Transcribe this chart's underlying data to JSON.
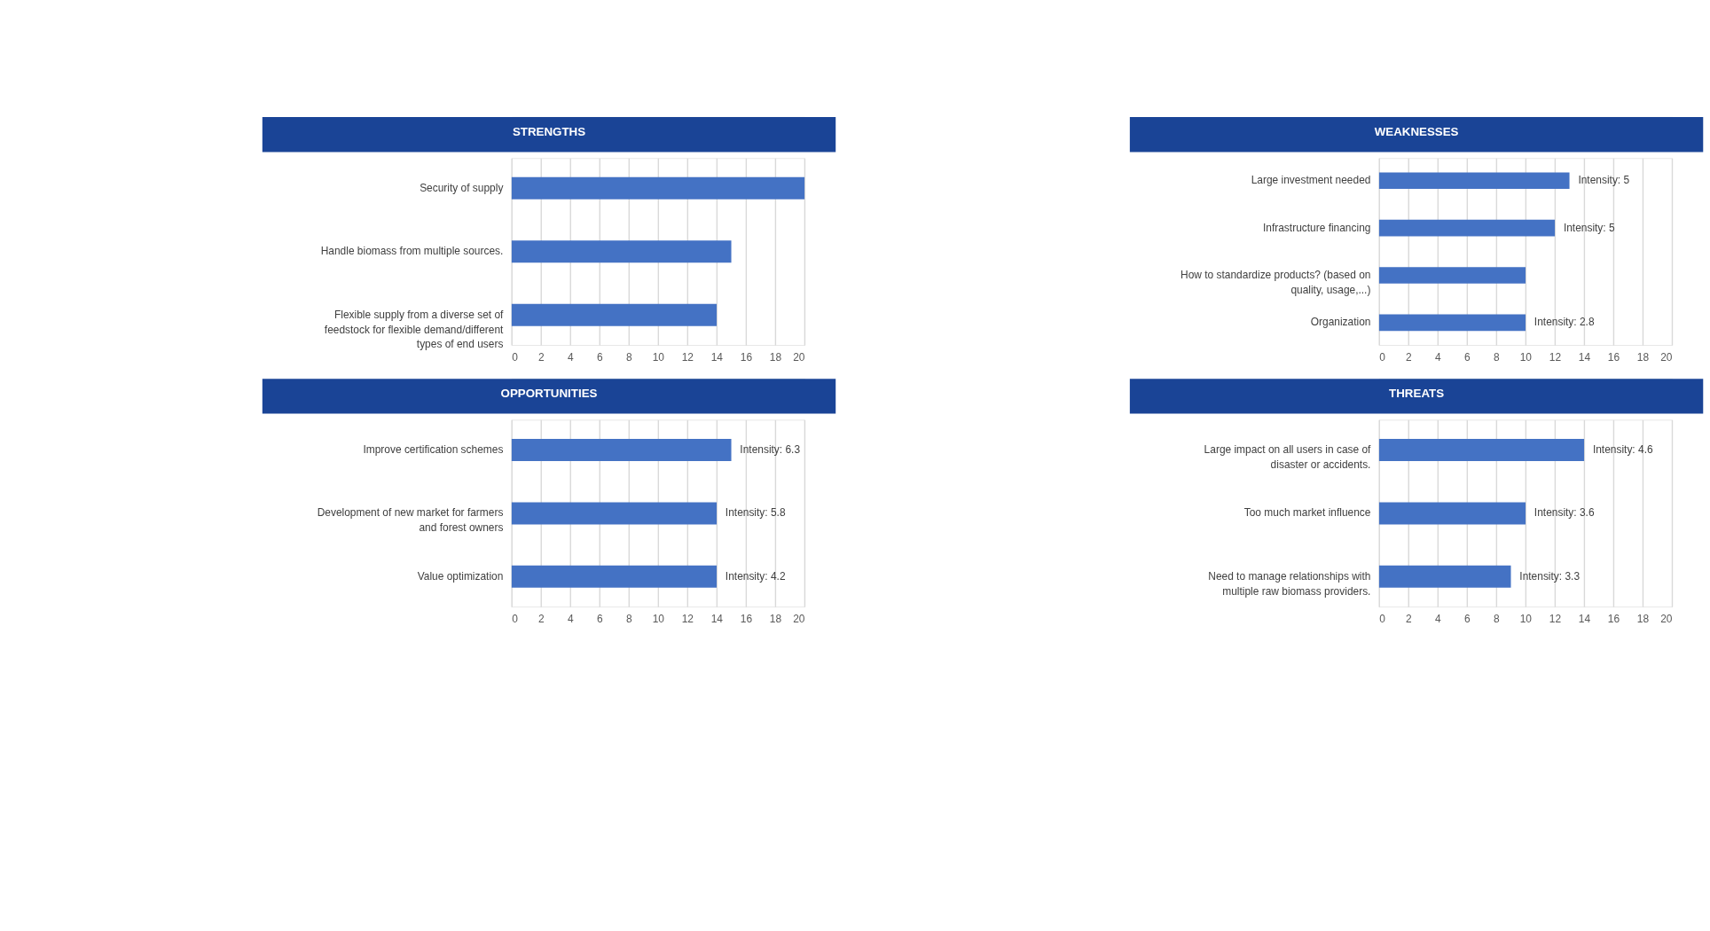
{
  "chart_data": [
    {
      "type": "bar",
      "orientation": "horizontal",
      "title": "STRENGTHS",
      "categories": [
        "Security of supply",
        "Handle biomass from multiple sources.",
        "Flexible supply from a diverse set of feedstock for flexible demand/different types of end users"
      ],
      "values": [
        20,
        15,
        14
      ],
      "color": "#4472c4",
      "xlim": [
        0,
        20
      ],
      "xticks": [
        0,
        2,
        4,
        6,
        8,
        10,
        12,
        14,
        16,
        18,
        20
      ],
      "grid": "x"
    },
    {
      "type": "bar",
      "orientation": "horizontal",
      "title": "WEAKNESSES",
      "categories": [
        "Large investment needed",
        "Infrastructure financing",
        "How to standardize products? (based on quality, usage,...)",
        "Organization"
      ],
      "values": [
        13,
        12,
        10,
        10
      ],
      "annotations": [
        {
          "text": "Intensity: 5",
          "x": 13,
          "y": "Large investment needed"
        },
        {
          "text": "Intensity: 5",
          "x": 12,
          "y": "Infrastructure financing"
        },
        {
          "text": "Intensity: 2.8",
          "x": 10,
          "y": "Organization"
        }
      ],
      "color": "#4472c4",
      "xlim": [
        0,
        20
      ],
      "xticks": [
        0,
        2,
        4,
        6,
        8,
        10,
        12,
        14,
        16,
        18,
        20
      ],
      "grid": "x"
    },
    {
      "type": "bar",
      "orientation": "horizontal",
      "title": "OPPORTUNITIES",
      "categories": [
        "Improve certification schemes",
        "Development of new market for farmers and forest owners",
        "Value optimization"
      ],
      "values": [
        15,
        14,
        14
      ],
      "annotations": [
        {
          "text": "Intensity: 6.3",
          "x": 15,
          "y": "Improve certification schemes"
        },
        {
          "text": "Intensity: 5.8",
          "x": 14,
          "y": "Development of new market for farmers and forest owners"
        },
        {
          "text": "Intensity: 4.2",
          "x": 14,
          "y": "Value optimization"
        }
      ],
      "color": "#4472c4",
      "xlim": [
        0,
        20
      ],
      "xticks": [
        0,
        2,
        4,
        6,
        8,
        10,
        12,
        14,
        16,
        18,
        20
      ],
      "grid": "x"
    },
    {
      "type": "bar",
      "orientation": "horizontal",
      "title": "THREATS",
      "categories": [
        "Large impact on all users in case of disaster or accidents.",
        "Too much market influence",
        "Need to manage relationships with multiple raw biomass providers."
      ],
      "values": [
        14,
        10,
        9
      ],
      "annotations": [
        {
          "text": "Intensity: 4.6",
          "x": 14,
          "y": "Large impact on all users in case of disaster or accidents."
        },
        {
          "text": "Intensity: 3.6",
          "x": 10,
          "y": "Too much market influence"
        },
        {
          "text": "Intensity: 3.3",
          "x": 9,
          "y": "Need to manage relationships with multiple raw biomass providers."
        }
      ],
      "color": "#4472c4",
      "xlim": [
        0,
        20
      ],
      "xticks": [
        0,
        2,
        4,
        6,
        8,
        10,
        12,
        14,
        16,
        18,
        20
      ],
      "grid": "x"
    }
  ]
}
